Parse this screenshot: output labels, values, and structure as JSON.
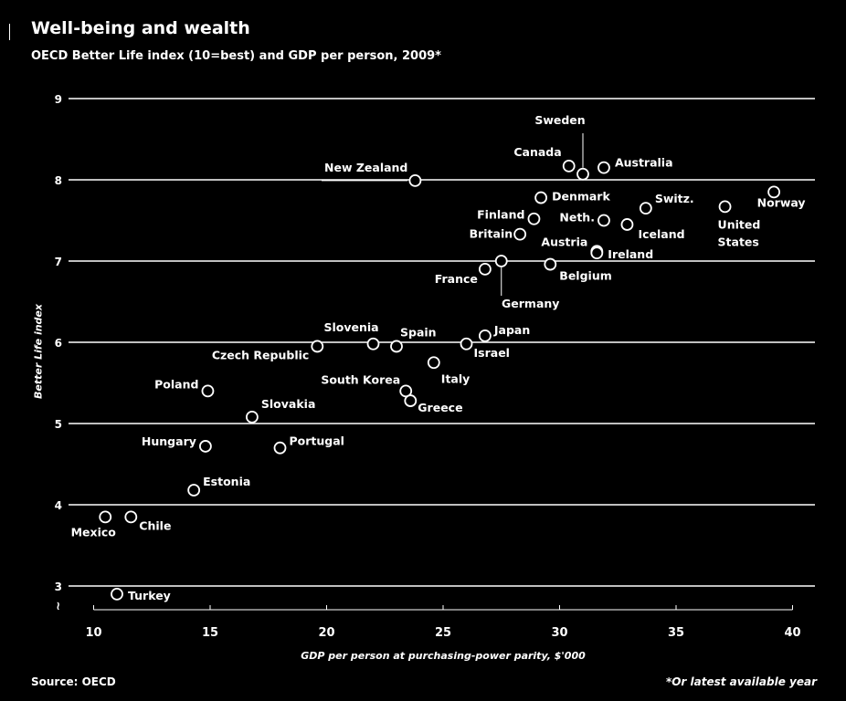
{
  "title": "Well-being and wealth",
  "subtitle": "OECD Better Life index (10=best) and GDP per person, 2009*",
  "source": "Source: OECD",
  "footnote": "*Or latest available year",
  "chart_data": {
    "type": "scatter",
    "title": "Well-being and wealth",
    "subtitle": "OECD Better Life index (10=best) and GDP per person, 2009*",
    "xlabel": "GDP per person at purchasing-power parity, $'000",
    "ylabel": "Better Life index",
    "xlim": [
      10,
      40
    ],
    "ylim": [
      3,
      9
    ],
    "x_ticks": [
      10,
      15,
      20,
      25,
      30,
      35,
      40
    ],
    "y_ticks": [
      3,
      4,
      5,
      6,
      7,
      8,
      9
    ],
    "grid": "horizontal",
    "axis_break": true,
    "axis_break_symbol": "≀",
    "points": [
      {
        "label": "Turkey",
        "x": 11.0,
        "y": 2.9
      },
      {
        "label": "Mexico",
        "x": 10.5,
        "y": 3.85
      },
      {
        "label": "Chile",
        "x": 11.6,
        "y": 3.85
      },
      {
        "label": "Estonia",
        "x": 14.3,
        "y": 4.18
      },
      {
        "label": "Hungary",
        "x": 14.8,
        "y": 4.72
      },
      {
        "label": "Portugal",
        "x": 18.0,
        "y": 4.7
      },
      {
        "label": "Slovakia",
        "x": 16.8,
        "y": 5.08
      },
      {
        "label": "Poland",
        "x": 14.9,
        "y": 5.4
      },
      {
        "label": "Czech Republic",
        "x": 19.6,
        "y": 5.95
      },
      {
        "label": "Slovenia",
        "x": 22.0,
        "y": 5.98
      },
      {
        "label": "Spain",
        "x": 23.0,
        "y": 5.95
      },
      {
        "label": "South Korea",
        "x": 23.4,
        "y": 5.4
      },
      {
        "label": "Greece",
        "x": 23.6,
        "y": 5.28
      },
      {
        "label": "Italy",
        "x": 24.6,
        "y": 5.75
      },
      {
        "label": "Israel",
        "x": 26.0,
        "y": 5.98
      },
      {
        "label": "Japan",
        "x": 26.8,
        "y": 6.08
      },
      {
        "label": "France",
        "x": 26.8,
        "y": 6.9
      },
      {
        "label": "Germany",
        "x": 27.5,
        "y": 7.0
      },
      {
        "label": "Belgium",
        "x": 29.6,
        "y": 6.96
      },
      {
        "label": "Britain",
        "x": 28.3,
        "y": 7.33
      },
      {
        "label": "Finland",
        "x": 28.9,
        "y": 7.52
      },
      {
        "label": "Denmark",
        "x": 29.2,
        "y": 7.78
      },
      {
        "label": "Austria",
        "x": 31.6,
        "y": 7.12
      },
      {
        "label": "Ireland",
        "x": 31.6,
        "y": 7.1
      },
      {
        "label": "Neth.",
        "x": 31.9,
        "y": 7.5
      },
      {
        "label": "Iceland",
        "x": 32.9,
        "y": 7.45
      },
      {
        "label": "Switz.",
        "x": 33.7,
        "y": 7.65
      },
      {
        "label": "New Zealand",
        "x": 23.8,
        "y": 7.99
      },
      {
        "label": "Canada",
        "x": 30.4,
        "y": 8.17
      },
      {
        "label": "Sweden",
        "x": 31.0,
        "y": 8.07
      },
      {
        "label": "Australia",
        "x": 31.9,
        "y": 8.15
      },
      {
        "label": "United States",
        "x": 37.1,
        "y": 7.67
      },
      {
        "label": "Norway",
        "x": 39.2,
        "y": 7.85
      }
    ]
  }
}
